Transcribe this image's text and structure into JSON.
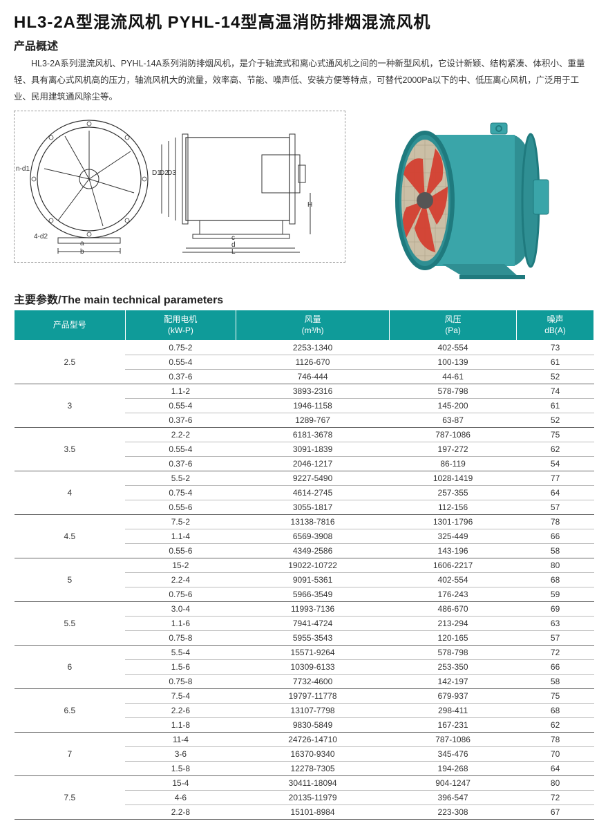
{
  "header": {
    "title": "HL3-2A型混流风机  PYHL-14型高温消防排烟混流风机"
  },
  "overview": {
    "heading": "产品概述",
    "text": "HL3-2A系列混流风机、PYHL-14A系列消防排烟风机，是介于轴流式和离心式通风机之间的一种新型风机，它设计新颖、结构紧凑、体积小、重量轻、具有离心式风机高的压力，轴流风机大的流量，效率高、节能、噪声低、安装方便等特点，可替代2000Pa以下的中、低压离心风机，广泛用于工业、民用建筑通风除尘等。"
  },
  "diagram": {
    "labels": [
      "n-d1",
      "4-d2",
      "a",
      "b",
      "D1",
      "D2",
      "D3",
      "H",
      "c",
      "d",
      "L"
    ]
  },
  "photo": {
    "body_color": "#3aa5a9",
    "flange_color": "#2f8f93",
    "blade_color": "#d43c2e",
    "mesh_color": "#cbbfa6",
    "hub_color": "#555"
  },
  "params_heading": "主要参数/The main technical parameters",
  "table": {
    "header_bg": "#0f9b99",
    "header_fg": "#ffffff",
    "columns": [
      {
        "label_cn": "产品型号",
        "label_en": ""
      },
      {
        "label_cn": "配用电机",
        "label_en": "(kW-P)"
      },
      {
        "label_cn": "风量",
        "label_en": "(m³/h)"
      },
      {
        "label_cn": "风压",
        "label_en": "(Pa)"
      },
      {
        "label_cn": "噪声",
        "label_en": "dB(A)"
      }
    ],
    "groups": [
      {
        "model": "2.5",
        "rows": [
          {
            "motor": "0.75-2",
            "airflow": "2253-1340",
            "pressure": "402-554",
            "noise": "73"
          },
          {
            "motor": "0.55-4",
            "airflow": "1126-670",
            "pressure": "100-139",
            "noise": "61"
          },
          {
            "motor": "0.37-6",
            "airflow": "746-444",
            "pressure": "44-61",
            "noise": "52"
          }
        ]
      },
      {
        "model": "3",
        "rows": [
          {
            "motor": "1.1-2",
            "airflow": "3893-2316",
            "pressure": "578-798",
            "noise": "74"
          },
          {
            "motor": "0.55-4",
            "airflow": "1946-1158",
            "pressure": "145-200",
            "noise": "61"
          },
          {
            "motor": "0.37-6",
            "airflow": "1289-767",
            "pressure": "63-87",
            "noise": "52"
          }
        ]
      },
      {
        "model": "3.5",
        "rows": [
          {
            "motor": "2.2-2",
            "airflow": "6181-3678",
            "pressure": "787-1086",
            "noise": "75"
          },
          {
            "motor": "0.55-4",
            "airflow": "3091-1839",
            "pressure": "197-272",
            "noise": "62"
          },
          {
            "motor": "0.37-6",
            "airflow": "2046-1217",
            "pressure": "86-119",
            "noise": "54"
          }
        ]
      },
      {
        "model": "4",
        "rows": [
          {
            "motor": "5.5-2",
            "airflow": "9227-5490",
            "pressure": "1028-1419",
            "noise": "77"
          },
          {
            "motor": "0.75-4",
            "airflow": "4614-2745",
            "pressure": "257-355",
            "noise": "64"
          },
          {
            "motor": "0.55-6",
            "airflow": "3055-1817",
            "pressure": "112-156",
            "noise": "57"
          }
        ]
      },
      {
        "model": "4.5",
        "rows": [
          {
            "motor": "7.5-2",
            "airflow": "13138-7816",
            "pressure": "1301-1796",
            "noise": "78"
          },
          {
            "motor": "1.1-4",
            "airflow": "6569-3908",
            "pressure": "325-449",
            "noise": "66"
          },
          {
            "motor": "0.55-6",
            "airflow": "4349-2586",
            "pressure": "143-196",
            "noise": "58"
          }
        ]
      },
      {
        "model": "5",
        "rows": [
          {
            "motor": "15-2",
            "airflow": "19022-10722",
            "pressure": "1606-2217",
            "noise": "80"
          },
          {
            "motor": "2.2-4",
            "airflow": "9091-5361",
            "pressure": "402-554",
            "noise": "68"
          },
          {
            "motor": "0.75-6",
            "airflow": "5966-3549",
            "pressure": "176-243",
            "noise": "59"
          }
        ]
      },
      {
        "model": "5.5",
        "rows": [
          {
            "motor": "3.0-4",
            "airflow": "11993-7136",
            "pressure": "486-670",
            "noise": "69"
          },
          {
            "motor": "1.1-6",
            "airflow": "7941-4724",
            "pressure": "213-294",
            "noise": "63"
          },
          {
            "motor": "0.75-8",
            "airflow": "5955-3543",
            "pressure": "120-165",
            "noise": "57"
          }
        ]
      },
      {
        "model": "6",
        "rows": [
          {
            "motor": "5.5-4",
            "airflow": "15571-9264",
            "pressure": "578-798",
            "noise": "72"
          },
          {
            "motor": "1.5-6",
            "airflow": "10309-6133",
            "pressure": "253-350",
            "noise": "66"
          },
          {
            "motor": "0.75-8",
            "airflow": "7732-4600",
            "pressure": "142-197",
            "noise": "58"
          }
        ]
      },
      {
        "model": "6.5",
        "rows": [
          {
            "motor": "7.5-4",
            "airflow": "19797-11778",
            "pressure": "679-937",
            "noise": "75"
          },
          {
            "motor": "2.2-6",
            "airflow": "13107-7798",
            "pressure": "298-411",
            "noise": "68"
          },
          {
            "motor": "1.1-8",
            "airflow": "9830-5849",
            "pressure": "167-231",
            "noise": "62"
          }
        ]
      },
      {
        "model": "7",
        "rows": [
          {
            "motor": "11-4",
            "airflow": "24726-14710",
            "pressure": "787-1086",
            "noise": "78"
          },
          {
            "motor": "3-6",
            "airflow": "16370-9340",
            "pressure": "345-476",
            "noise": "70"
          },
          {
            "motor": "1.5-8",
            "airflow": "12278-7305",
            "pressure": "194-268",
            "noise": "64"
          }
        ]
      },
      {
        "model": "7.5",
        "rows": [
          {
            "motor": "15-4",
            "airflow": "30411-18094",
            "pressure": "904-1247",
            "noise": "80"
          },
          {
            "motor": "4-6",
            "airflow": "20135-11979",
            "pressure": "396-547",
            "noise": "72"
          },
          {
            "motor": "2.2-8",
            "airflow": "15101-8984",
            "pressure": "223-308",
            "noise": "67"
          }
        ]
      }
    ]
  }
}
